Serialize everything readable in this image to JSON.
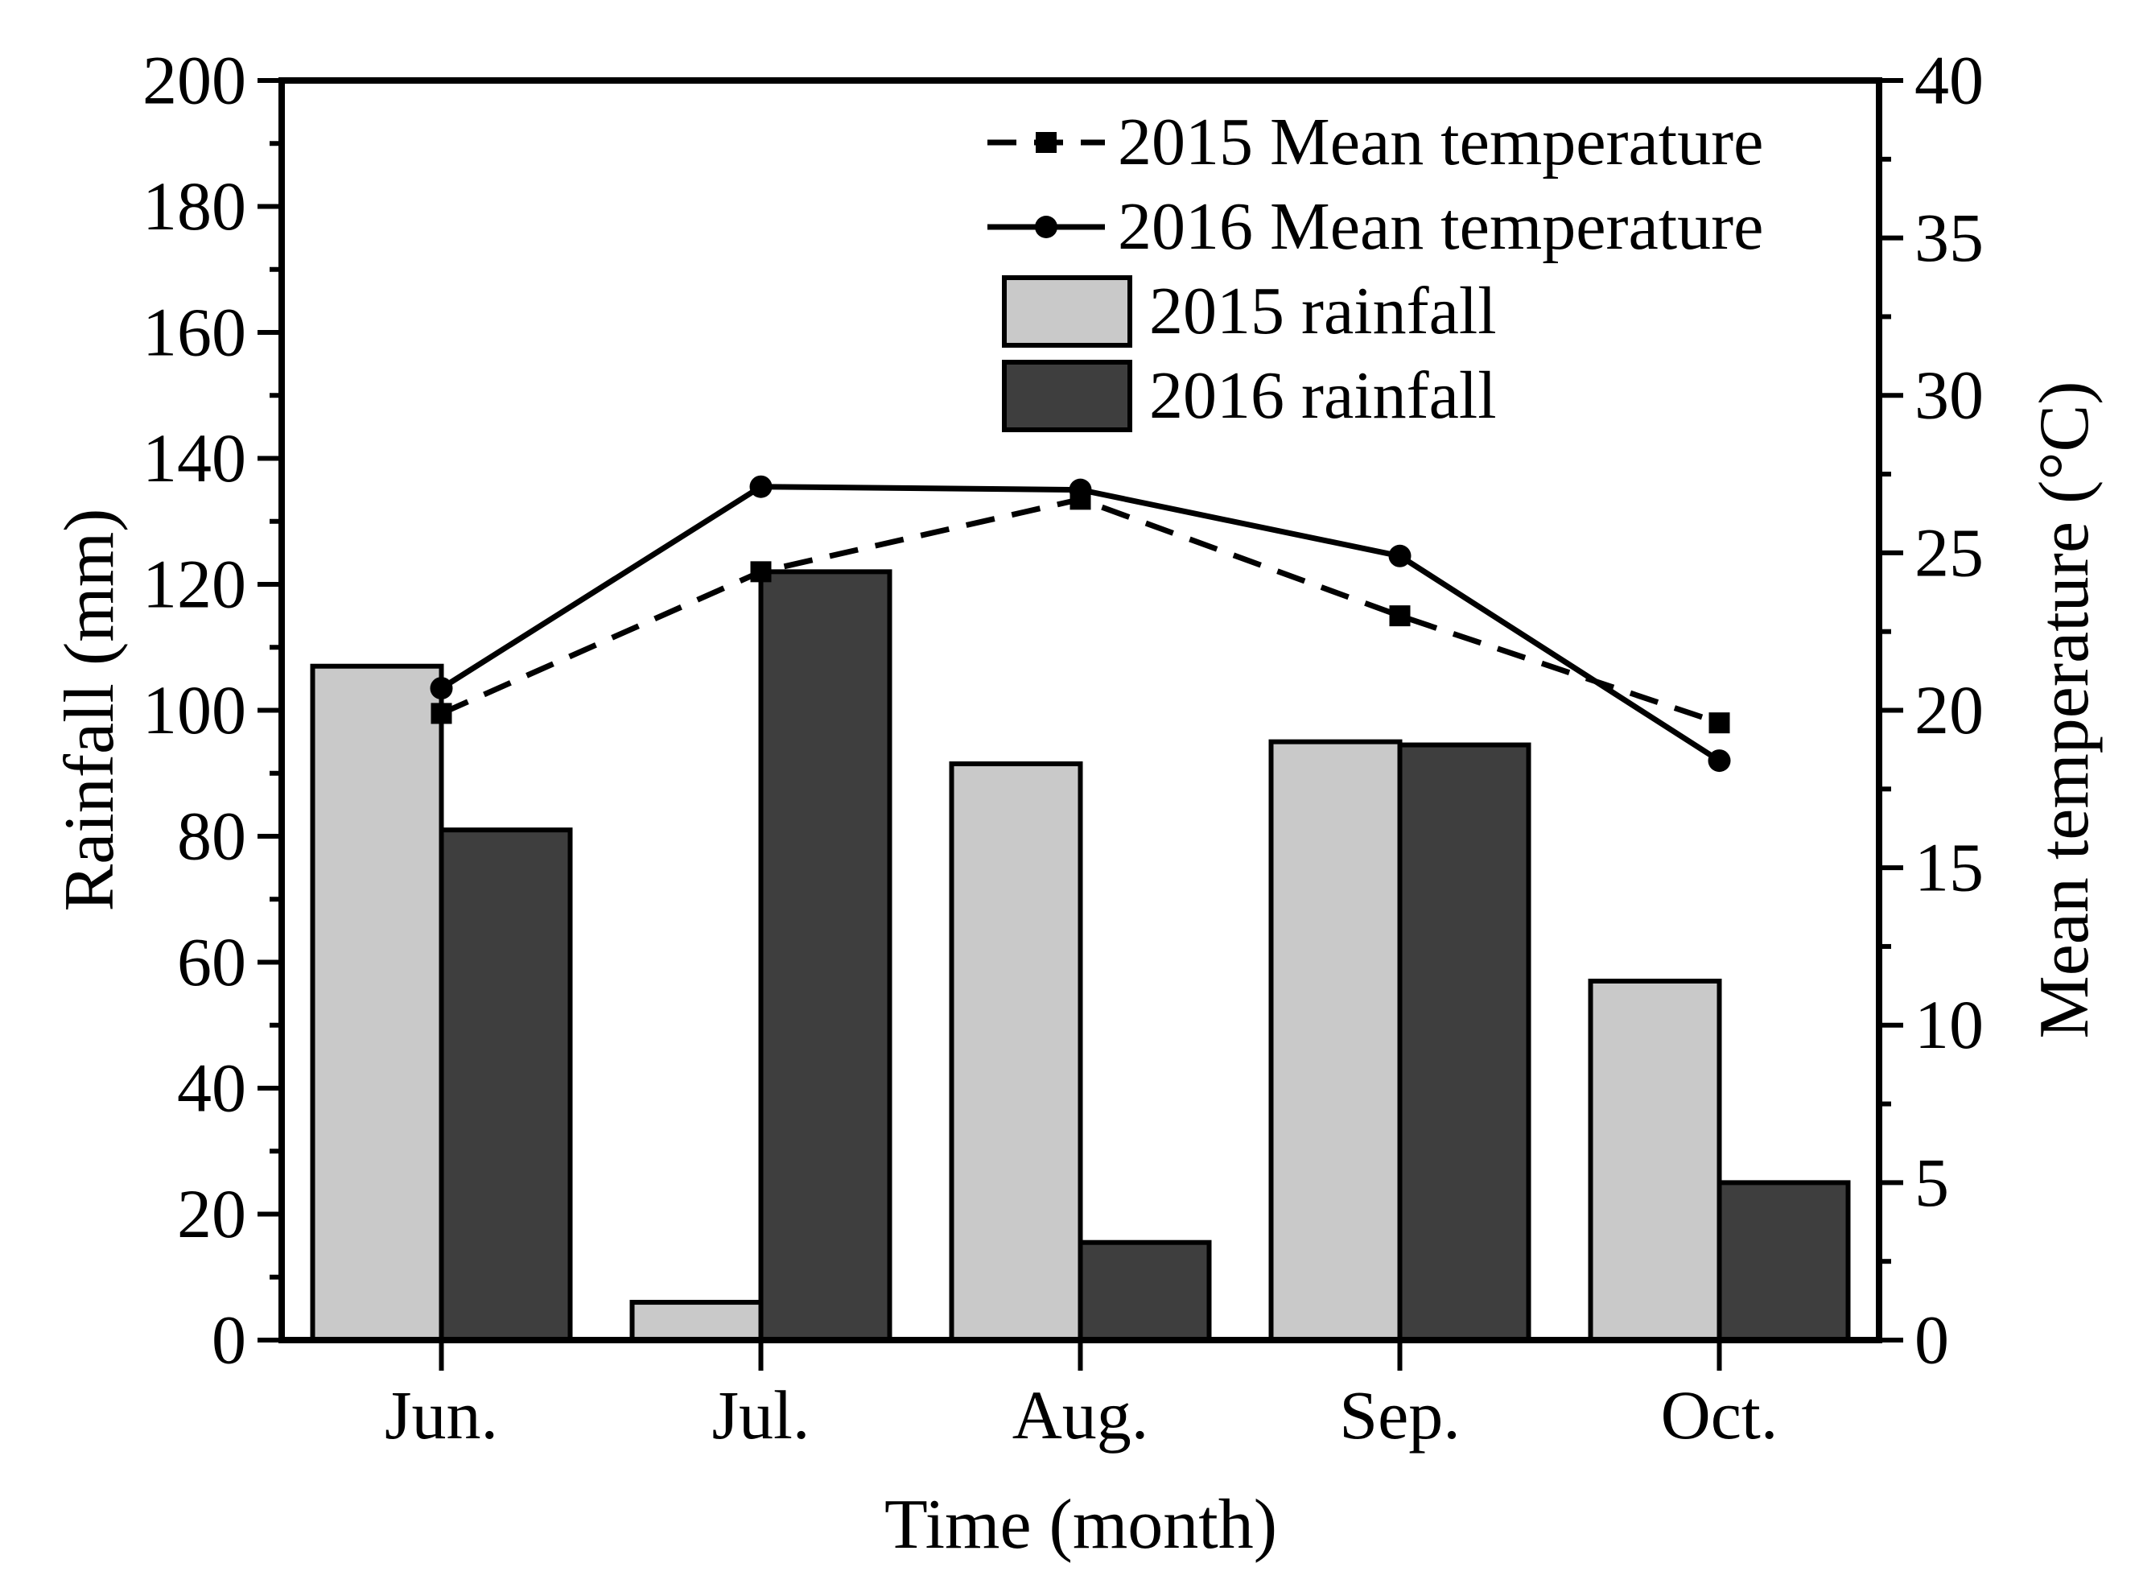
{
  "figure": {
    "kind": "dual-axis rainfall and temperature chart",
    "background": "#ffffff",
    "ink_color": "#000000"
  },
  "axes": {
    "left": {
      "title": "Rainfall (mm)",
      "range": [
        0,
        200
      ],
      "major_ticks": [
        0,
        20,
        40,
        60,
        80,
        100,
        120,
        140,
        160,
        180,
        200
      ],
      "minor_ticks": [
        10,
        30,
        50,
        70,
        90,
        110,
        130,
        150,
        170,
        190
      ]
    },
    "right": {
      "title": "Mean temperature (°C)",
      "range": [
        0,
        40
      ],
      "major_ticks": [
        0,
        5,
        10,
        15,
        20,
        25,
        30,
        35,
        40
      ],
      "minor_ticks": [
        2.5,
        7.5,
        12.5,
        17.5,
        22.5,
        27.5,
        32.5,
        37.5
      ]
    },
    "bottom": {
      "title": "Time (month)",
      "categories": [
        "Jun.",
        "Jul.",
        "Aug.",
        "Sep.",
        "Oct."
      ]
    }
  },
  "legend": {
    "entries": [
      {
        "label": "2015 Mean temperature",
        "sample": "dashed-line-square-marker",
        "color": "#000000"
      },
      {
        "label": "2016 Mean temperature",
        "sample": "solid-line-circle-marker",
        "color": "#000000"
      },
      {
        "label": "2015 rainfall",
        "sample": "light-gray-swatch",
        "color": "#c9c9c9"
      },
      {
        "label": "2016 rainfall",
        "sample": "dark-gray-swatch",
        "color": "#3e3e3e"
      }
    ]
  },
  "chart_data": {
    "type": "combo-bar-line",
    "categories": [
      "Jun.",
      "Jul.",
      "Aug.",
      "Sep.",
      "Oct."
    ],
    "series": [
      {
        "name": "2015 Mean temperature",
        "type": "line",
        "line_style": "dashed",
        "marker": "square",
        "axis": "right",
        "unit": "°C",
        "color": "#000000",
        "values": [
          19.9,
          24.4,
          26.7,
          23.0,
          19.6
        ]
      },
      {
        "name": "2016 Mean temperature",
        "type": "line",
        "line_style": "solid",
        "marker": "circle",
        "axis": "right",
        "unit": "°C",
        "color": "#000000",
        "values": [
          20.7,
          27.1,
          27.0,
          24.9,
          18.4
        ]
      },
      {
        "name": "2015 rainfall",
        "type": "bar",
        "axis": "left",
        "unit": "mm",
        "color": "#c9c9c9",
        "values": [
          107,
          6,
          91.5,
          95,
          57
        ]
      },
      {
        "name": "2016 rainfall",
        "type": "bar",
        "axis": "left",
        "unit": "mm",
        "color": "#3e3e3e",
        "values": [
          81,
          122,
          15.5,
          94.5,
          25
        ]
      }
    ],
    "xlabel": "Time (month)",
    "ylabel_left": "Rainfall (mm)",
    "ylabel_right": "Mean temperature (°C)",
    "ylim_left": [
      0,
      200
    ],
    "ylim_right": [
      0,
      40
    ],
    "grid": false,
    "legend_position": "upper-center-inside"
  }
}
